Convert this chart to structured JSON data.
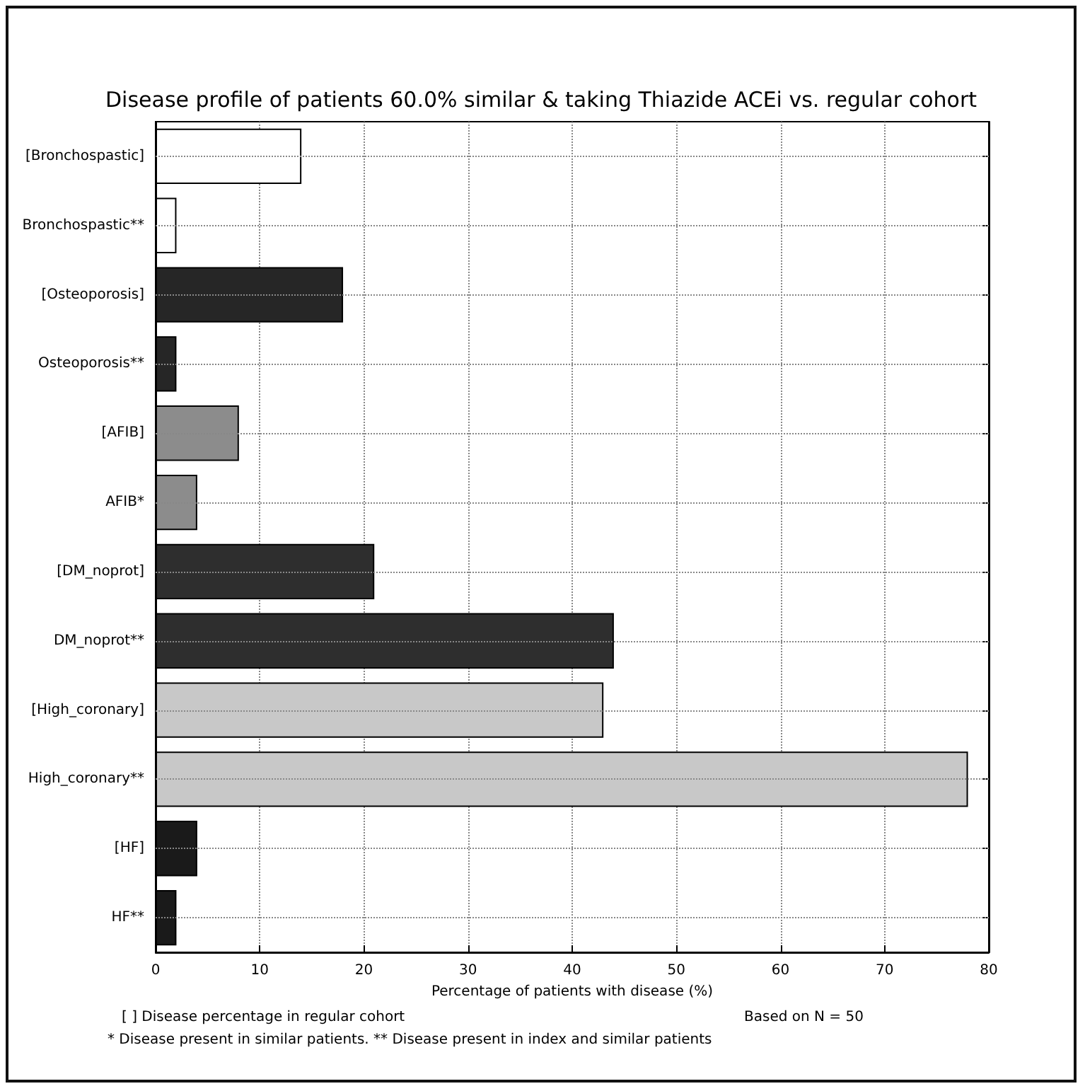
{
  "chart_data": {
    "type": "bar",
    "orientation": "horizontal",
    "title": "Disease profile of patients 60.0% similar & taking Thiazide ACEi vs. regular cohort",
    "xlabel": "Percentage of patients with disease (%)",
    "categories": [
      "[Bronchospastic]",
      "Bronchospastic**",
      "[Osteoporosis]",
      "Osteoporosis**",
      "[AFIB]",
      "AFIB*",
      "[DM_noprot]",
      "DM_noprot**",
      "[High_coronary]",
      "High_coronary**",
      "[HF]",
      "HF**"
    ],
    "values": [
      14,
      2,
      18,
      2,
      8,
      4,
      21,
      44,
      43,
      78,
      4,
      2
    ],
    "colors": [
      "#ffffff",
      "#ffffff",
      "#262626",
      "#262626",
      "#8c8c8c",
      "#8c8c8c",
      "#2e2e2e",
      "#2e2e2e",
      "#c8c8c8",
      "#c8c8c8",
      "#1a1a1a",
      "#1a1a1a"
    ],
    "xlim": [
      0,
      80
    ],
    "xticks": [
      0,
      10,
      20,
      30,
      40,
      50,
      60,
      70,
      80
    ],
    "grid": true,
    "annotations": [
      "[ ] Disease percentage in regular cohort",
      "* Disease present in similar patients. ** Disease present in index and similar patients",
      "Based on N = 50"
    ]
  }
}
